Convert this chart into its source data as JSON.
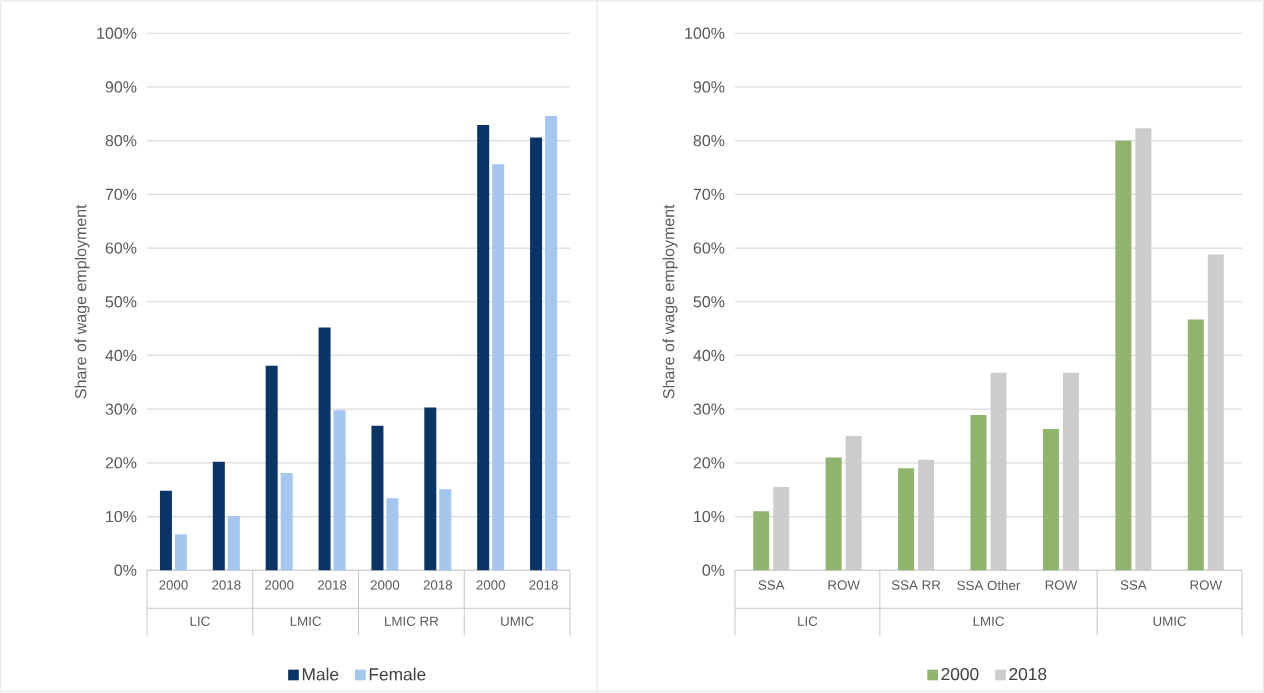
{
  "chart_data": [
    {
      "type": "bar",
      "ylabel": "Share of wage employment",
      "categories": [
        "2000",
        "2018",
        "2000",
        "2018",
        "2000",
        "2018",
        "2000",
        "2018"
      ],
      "series": [
        {
          "name": "Male",
          "color": "#0a3465",
          "values": [
            14.8,
            20.2,
            38.1,
            45.2,
            26.9,
            30.3,
            82.9,
            80.6
          ]
        },
        {
          "name": "Female",
          "color": "#a4c6ef",
          "values": [
            6.7,
            10.1,
            18.1,
            29.8,
            13.4,
            15.1,
            75.6,
            84.6
          ]
        }
      ],
      "annotations": [
        "LIC",
        "LMIC",
        "LMIC RR",
        "UMIC"
      ],
      "ylim": [
        0,
        100
      ],
      "yticks": [
        {
          "value": 0,
          "label": "0%"
        },
        {
          "value": 10,
          "label": "10%"
        },
        {
          "value": 20,
          "label": "20%"
        },
        {
          "value": 30,
          "label": "30%"
        },
        {
          "value": 40,
          "label": "40%"
        },
        {
          "value": 50,
          "label": "50%"
        },
        {
          "value": 60,
          "label": "60%"
        },
        {
          "value": 70,
          "label": "70%"
        },
        {
          "value": 80,
          "label": "80%"
        },
        {
          "value": 90,
          "label": "90%"
        },
        {
          "value": 100,
          "label": "100%"
        }
      ],
      "grid": "y",
      "legend": "bottom"
    },
    {
      "type": "bar",
      "ylabel": "Share of wage employment",
      "categories": [
        "SSA",
        "ROW",
        "SSA RR",
        "SSA Other",
        "ROW",
        "SSA",
        "ROW"
      ],
      "series": [
        {
          "name": "2000",
          "color": "#8fb46e",
          "values": [
            11.0,
            21.0,
            19.0,
            28.9,
            26.3,
            80.0,
            46.7
          ]
        },
        {
          "name": "2018",
          "color": "#cccccc",
          "values": [
            15.5,
            25.0,
            20.6,
            36.8,
            36.8,
            82.3,
            58.8
          ]
        }
      ],
      "annotations": [
        "LIC",
        "LMIC",
        "UMIC"
      ],
      "ylim": [
        0,
        100
      ],
      "yticks": [
        {
          "value": 0,
          "label": "0%"
        },
        {
          "value": 10,
          "label": "10%"
        },
        {
          "value": 20,
          "label": "20%"
        },
        {
          "value": 30,
          "label": "30%"
        },
        {
          "value": 40,
          "label": "40%"
        },
        {
          "value": 50,
          "label": "50%"
        },
        {
          "value": 60,
          "label": "60%"
        },
        {
          "value": 70,
          "label": "70%"
        },
        {
          "value": 80,
          "label": "80%"
        },
        {
          "value": 90,
          "label": "90%"
        },
        {
          "value": 100,
          "label": "100%"
        }
      ],
      "grid": "y",
      "legend": "bottom"
    }
  ]
}
